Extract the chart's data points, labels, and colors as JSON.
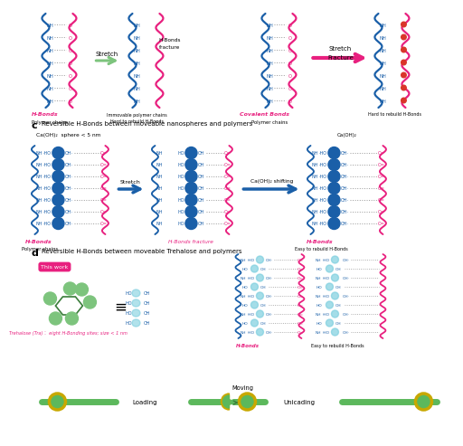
{
  "bg_color": "#ffffff",
  "pink": "#e8207f",
  "blue": "#1a5fa8",
  "green": "#5cb85c",
  "dgreen": "#3a7d3a",
  "lgreen": "#7dc47d",
  "red": "#d9352a",
  "cyan": "#7ecfdf",
  "arrow_green": "#7dc47d",
  "gold": "#c8a800",
  "section_c": "Reversible H-Bonds between moveable nanospheres and polymers",
  "section_d": "Reversible H-Bonds between moveable Trehalose and polymers",
  "caoh2_sphere": "Ca(OH)₂  sphere < 5 nm",
  "caoh2_shift": "Ca(OH)₂ shifting",
  "caoh2": "Ca(OH)₂",
  "trehalose_label": "Trehalose (Tra)： eight H-Bonding sites; size < 1 nm",
  "this_work": "This work",
  "loading": "Loading",
  "moving": "Moving",
  "unicading": "Unicading"
}
